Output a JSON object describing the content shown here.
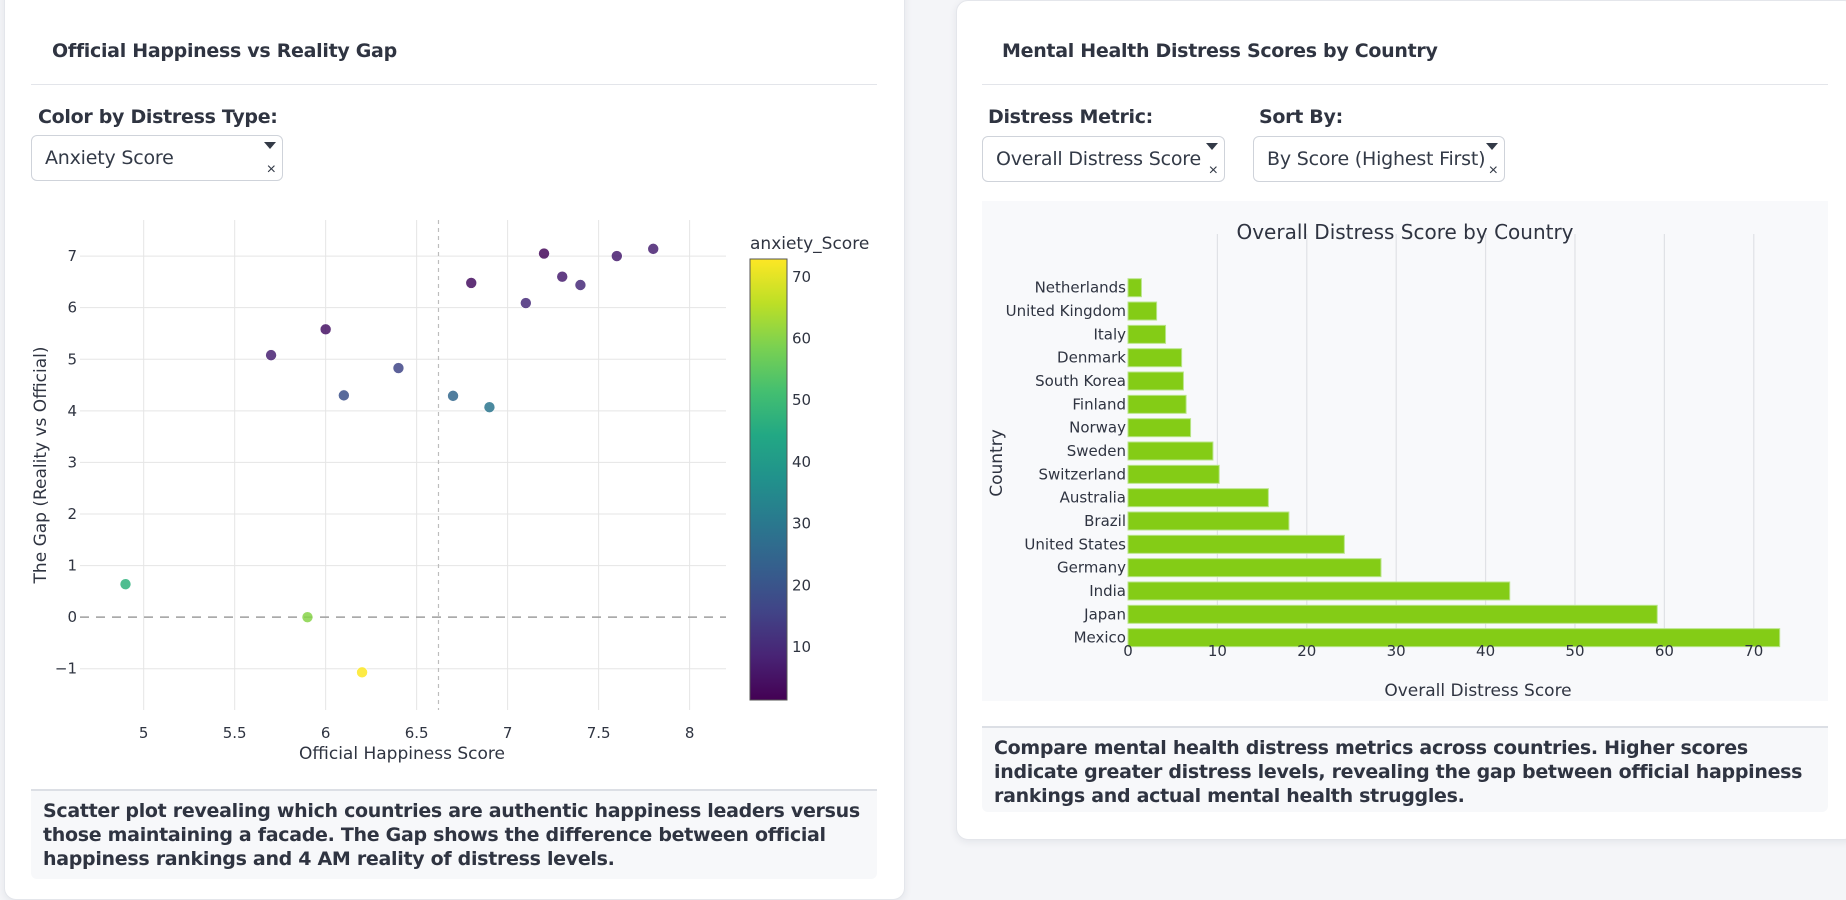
{
  "left_panel": {
    "title": "Official Happiness vs Reality Gap",
    "control_label": "Color by Distress Type:",
    "dropdown_value": "Anxiety Score",
    "caret_glyph": "▼",
    "clear_glyph": "×",
    "description": "Scatter plot revealing which countries are authentic happiness leaders versus those maintaining a facade. The Gap shows the difference between official happiness rankings and 4 AM reality of distress levels."
  },
  "right_panel": {
    "title": "Mental Health Distress Scores by Country",
    "metric_label": "Distress Metric:",
    "metric_value": "Overall Distress Score",
    "sort_label": "Sort By:",
    "sort_value": "By Score (Highest First)",
    "clear_glyph": "×",
    "description": "Compare mental health distress metrics across countries. Higher scores indicate greater distress levels, revealing the gap between official happiness rankings and actual mental health struggles."
  },
  "colors": {
    "bar": "#84cc16",
    "grid": "#e5e5e5",
    "zero_line": "#9e9e9e",
    "text": "#2f3441",
    "panel_bg": "#f8f9fb"
  },
  "chart_data": [
    {
      "type": "scatter",
      "title": "",
      "xlabel": "Official Happiness Score",
      "ylabel": "The Gap (Reality vs Official)",
      "xlim": [
        4.65,
        8.2
      ],
      "ylim": [
        -1.8,
        7.7
      ],
      "xticks": [
        5,
        5.5,
        6,
        6.5,
        7,
        7.5,
        8
      ],
      "xtick_labels": [
        "5",
        "5.5",
        "6",
        "6.5",
        "7",
        "7.5",
        "8"
      ],
      "yticks": [
        -1,
        0,
        1,
        2,
        3,
        4,
        5,
        6,
        7
      ],
      "ytick_labels": [
        "−1",
        "0",
        "1",
        "2",
        "3",
        "4",
        "5",
        "6",
        "7"
      ],
      "grid": true,
      "reference_lines": {
        "horizontal_y": 0,
        "vertical_x": 6.62
      },
      "colorbar": {
        "title": "anxiety_Score",
        "range": [
          1.4,
          72.9
        ],
        "ticks": [
          10,
          20,
          30,
          40,
          50,
          60,
          70
        ],
        "colorscale": "viridis"
      },
      "points": [
        {
          "x": 4.9,
          "y": 0.64,
          "color_value": 47
        },
        {
          "x": 5.7,
          "y": 5.08,
          "color_value": 8
        },
        {
          "x": 5.9,
          "y": 0.0,
          "color_value": 60
        },
        {
          "x": 6.0,
          "y": 5.58,
          "color_value": 5
        },
        {
          "x": 6.1,
          "y": 4.3,
          "color_value": 19
        },
        {
          "x": 6.2,
          "y": -1.07,
          "color_value": 72.9
        },
        {
          "x": 6.4,
          "y": 4.83,
          "color_value": 16
        },
        {
          "x": 6.7,
          "y": 4.29,
          "color_value": 25
        },
        {
          "x": 6.8,
          "y": 6.48,
          "color_value": 4
        },
        {
          "x": 6.9,
          "y": 4.07,
          "color_value": 29
        },
        {
          "x": 7.1,
          "y": 6.09,
          "color_value": 10
        },
        {
          "x": 7.2,
          "y": 7.05,
          "color_value": 3
        },
        {
          "x": 7.3,
          "y": 6.6,
          "color_value": 7
        },
        {
          "x": 7.4,
          "y": 6.44,
          "color_value": 10
        },
        {
          "x": 7.6,
          "y": 7.0,
          "color_value": 7
        },
        {
          "x": 7.8,
          "y": 7.14,
          "color_value": 8
        }
      ]
    },
    {
      "type": "bar",
      "orientation": "horizontal",
      "title": "Overall Distress Score by Country",
      "xlabel": "Overall Distress Score",
      "ylabel": "Country",
      "xlim": [
        0,
        74.5
      ],
      "xticks": [
        0,
        10,
        20,
        30,
        40,
        50,
        60,
        70
      ],
      "grid": true,
      "categories": [
        "Netherlands",
        "United Kingdom",
        "Italy",
        "Denmark",
        "South Korea",
        "Finland",
        "Norway",
        "Sweden",
        "Switzerland",
        "Australia",
        "Brazil",
        "United States",
        "Germany",
        "India",
        "Japan",
        "Mexico"
      ],
      "values": [
        1.5,
        3.2,
        4.2,
        6.0,
        6.2,
        6.5,
        7.0,
        9.5,
        10.2,
        15.7,
        18.0,
        24.2,
        28.3,
        42.7,
        59.2,
        72.9
      ]
    }
  ]
}
